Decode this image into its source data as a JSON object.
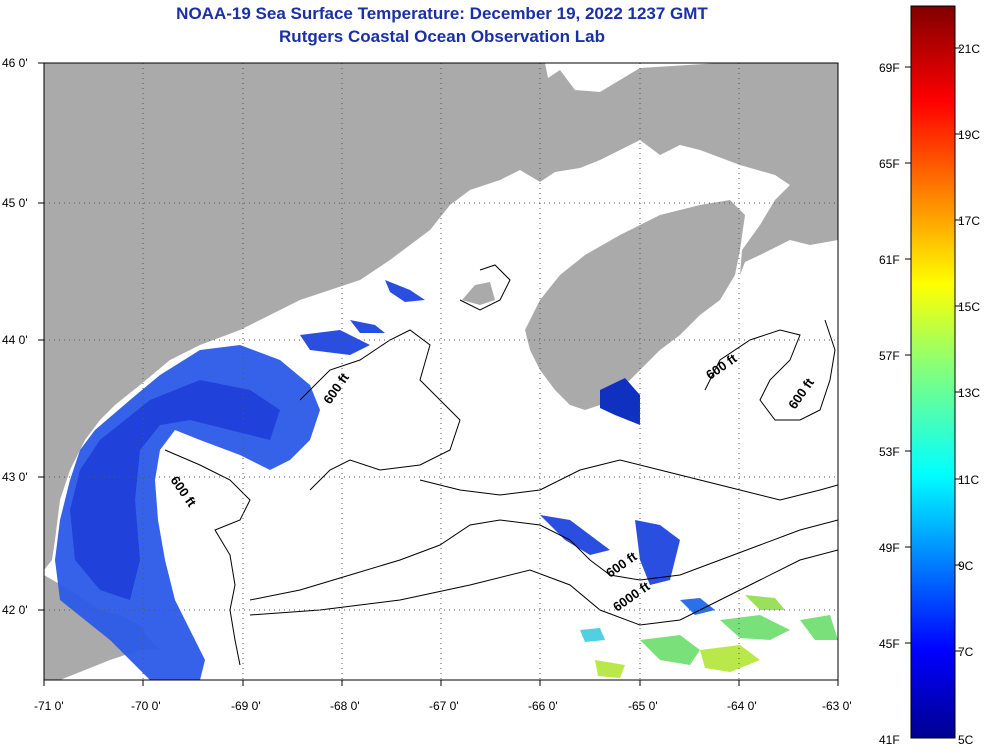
{
  "title_line1": "NOAA-19 Sea Surface Temperature:  December 19, 2022 1237 GMT",
  "title_line2": "Rutgers Coastal Ocean Observation Lab",
  "colors": {
    "land": "#aaaaaa",
    "ocean_no_data": "#ffffff",
    "title": "#1a2fa8"
  },
  "map": {
    "lon_range": [
      -71,
      -63
    ],
    "lat_range": [
      41.5,
      46
    ],
    "x_ticks": [
      "-71 0'",
      "-70 0'",
      "-69 0'",
      "-68 0'",
      "-67 0'",
      "-66 0'",
      "-65 0'",
      "-64 0'",
      "-63 0'"
    ],
    "y_ticks": [
      "46 0'",
      "45 0'",
      "44 0'",
      "43 0'",
      "42 0'"
    ],
    "contour_labels": [
      "600 ft",
      "600 ft",
      "600 ft",
      "600 ft",
      "600 ft",
      "6000 ft"
    ]
  },
  "colorbar": {
    "fahrenheit_labels": [
      "69F",
      "65F",
      "61F",
      "57F",
      "53F",
      "49F",
      "45F",
      "41F"
    ],
    "celsius_labels": [
      "21C",
      "19C",
      "17C",
      "15C",
      "13C",
      "11C",
      "9C",
      "7C",
      "5C"
    ],
    "range_c": [
      5,
      22
    ]
  }
}
